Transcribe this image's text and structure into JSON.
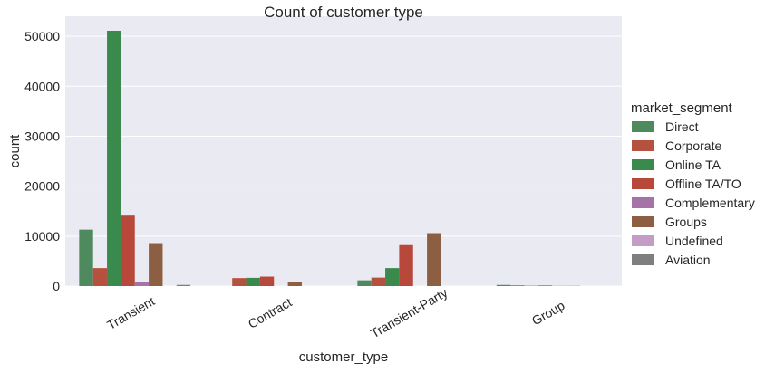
{
  "chart_data": {
    "type": "bar",
    "title": "Count of customer type",
    "xlabel": "customer_type",
    "ylabel": "count",
    "categories": [
      "Transient",
      "Contract",
      "Transient-Party",
      "Group"
    ],
    "ylim": [
      0,
      54000
    ],
    "yticks": [
      0,
      10000,
      20000,
      30000,
      40000,
      50000
    ],
    "grid": true,
    "legend": {
      "title": "market_segment",
      "placement": "right"
    },
    "series": [
      {
        "name": "Direct",
        "color": "#4f8a5e",
        "values": [
          11300,
          0,
          1150,
          220
        ]
      },
      {
        "name": "Corporate",
        "color": "#b5513f",
        "values": [
          3600,
          1600,
          1700,
          130
        ]
      },
      {
        "name": "Online TA",
        "color": "#3a8a4d",
        "values": [
          51100,
          1650,
          3600,
          60
        ]
      },
      {
        "name": "Offline TA/TO",
        "color": "#b8483a",
        "values": [
          14100,
          1900,
          8200,
          110
        ]
      },
      {
        "name": "Complementary",
        "color": "#a673a6",
        "values": [
          750,
          0,
          0,
          40
        ]
      },
      {
        "name": "Groups",
        "color": "#8c5f42",
        "values": [
          8600,
          850,
          10600,
          40
        ]
      },
      {
        "name": "Undefined",
        "color": "#c39dc3",
        "values": [
          0,
          0,
          0,
          0
        ]
      },
      {
        "name": "Aviation",
        "color": "#7f7f7f",
        "values": [
          230,
          0,
          0,
          0
        ]
      }
    ]
  }
}
